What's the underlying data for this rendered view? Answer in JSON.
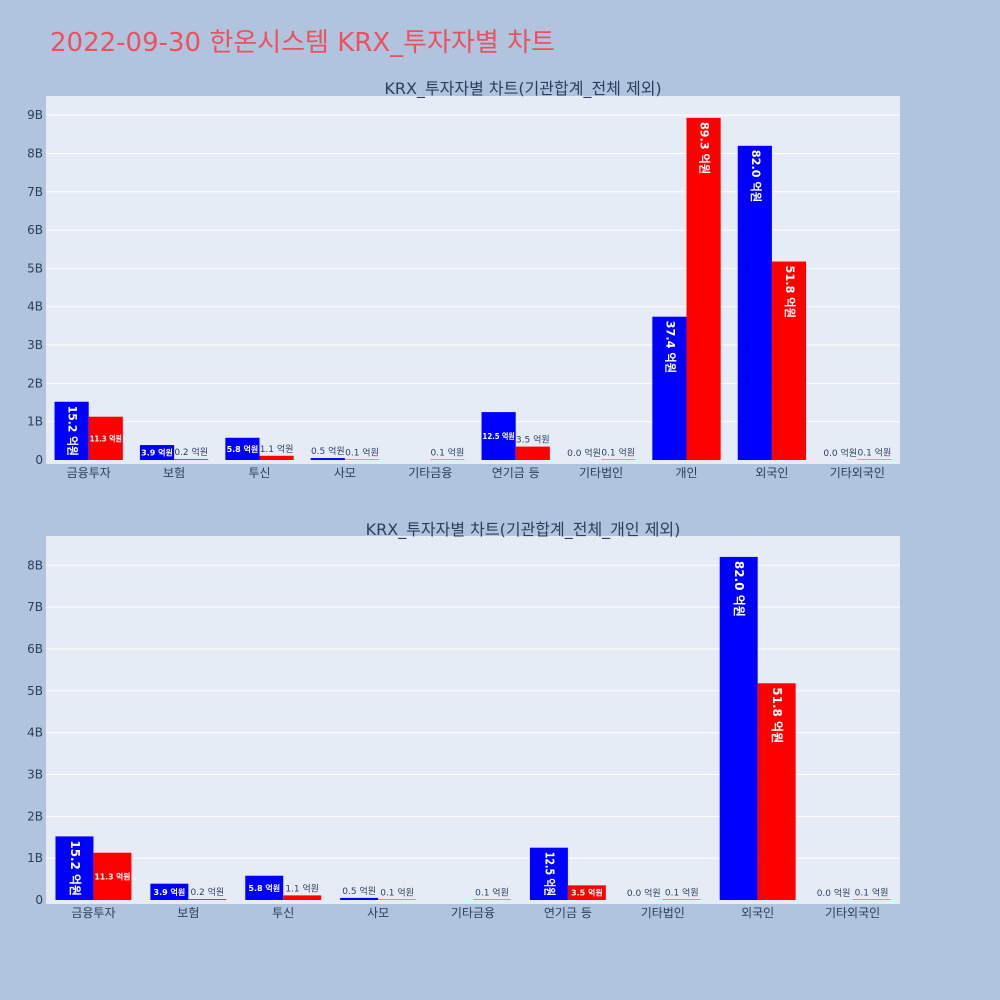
{
  "page": {
    "title": "2022-09-30 한온시스템 KRX_투자자별 차트"
  },
  "colors": {
    "buy": "#0000ff",
    "sell": "#ff0000",
    "plot_bg": "#e5ecf6",
    "page_bg": "#b0c4de",
    "title": "#ef5060"
  },
  "chart_data": [
    {
      "type": "bar",
      "title": "KRX_투자자별 차트(기관합계_전체 제외)",
      "categories": [
        "금융투자",
        "보험",
        "투신",
        "사모",
        "기타금융",
        "연기금 등",
        "기타법인",
        "개인",
        "외국인",
        "기타외국인"
      ],
      "series": [
        {
          "color": "#0000ff",
          "values": [
            1.52,
            0.39,
            0.58,
            0.05,
            0,
            1.25,
            0.0,
            3.74,
            8.2,
            0.0
          ],
          "labels": [
            "15.2 억원",
            "3.9 억원",
            "5.8 억원",
            "0.5 억원",
            "",
            "12.5 억원",
            "0.0 억원",
            "37.4 억원",
            "82.0 억원",
            "0.0 억원"
          ]
        },
        {
          "color": "#ff0000",
          "values": [
            1.13,
            0.02,
            0.11,
            0.01,
            0.01,
            0.35,
            0.01,
            8.93,
            5.18,
            0.01
          ],
          "labels": [
            "11.3 억원",
            "0.2 억원",
            "1.1 억원",
            "0.1 억원",
            "0.1 억원",
            "3.5 억원",
            "0.1 억원",
            "89.3 억원",
            "51.8 억원",
            "0.1 억원"
          ]
        }
      ],
      "yticks": [
        0,
        1,
        2,
        3,
        4,
        5,
        6,
        7,
        8,
        9
      ],
      "ytick_labels": [
        "0",
        "1B",
        "2B",
        "3B",
        "4B",
        "5B",
        "6B",
        "7B",
        "8B",
        "9B"
      ],
      "ylim": [
        0,
        9.5
      ],
      "grid": true
    },
    {
      "type": "bar",
      "title": "KRX_투자자별 차트(기관합계_전체_개인 제외)",
      "categories": [
        "금융투자",
        "보험",
        "투신",
        "사모",
        "기타금융",
        "연기금 등",
        "기타법인",
        "외국인",
        "기타외국인"
      ],
      "series": [
        {
          "color": "#0000ff",
          "values": [
            1.52,
            0.39,
            0.58,
            0.05,
            0,
            1.25,
            0.0,
            8.2,
            0.0
          ],
          "labels": [
            "15.2 억원",
            "3.9 억원",
            "5.8 억원",
            "0.5 억원",
            "",
            "12.5 억원",
            "0.0 억원",
            "82.0 억원",
            "0.0 억원"
          ]
        },
        {
          "color": "#ff0000",
          "values": [
            1.13,
            0.02,
            0.11,
            0.01,
            0.01,
            0.35,
            0.01,
            5.18,
            0.01
          ],
          "labels": [
            "11.3 억원",
            "0.2 억원",
            "1.1 억원",
            "0.1 억원",
            "0.1 억원",
            "3.5 억원",
            "0.1 억원",
            "51.8 억원",
            "0.1 억원"
          ]
        }
      ],
      "yticks": [
        0,
        1,
        2,
        3,
        4,
        5,
        6,
        7,
        8
      ],
      "ytick_labels": [
        "0",
        "1B",
        "2B",
        "3B",
        "4B",
        "5B",
        "6B",
        "7B",
        "8B"
      ],
      "ylim": [
        0,
        8.7
      ],
      "grid": true
    }
  ]
}
